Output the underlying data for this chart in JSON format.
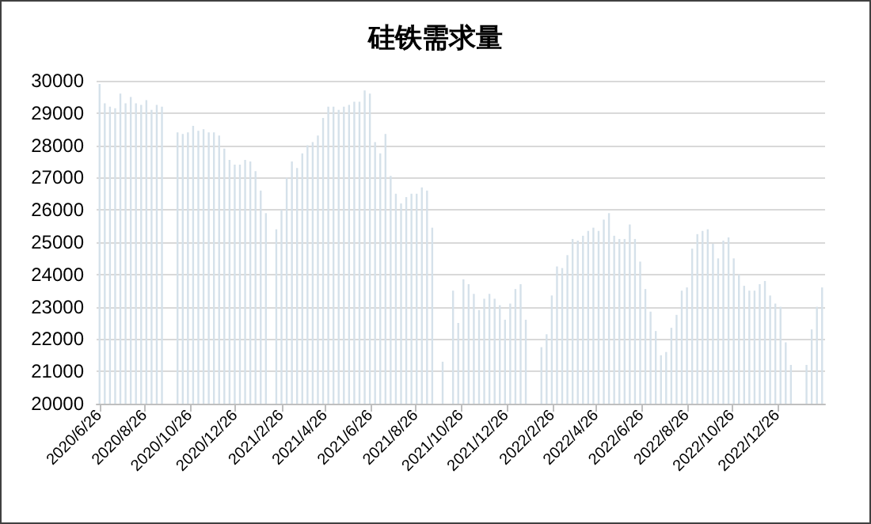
{
  "chart_data": {
    "type": "bar",
    "title": "硅铁需求量",
    "color": "#d5e1ea",
    "grid": "y",
    "xlim": [
      "2020-06-22",
      "2023-02-28"
    ],
    "ylim": [
      20000,
      30000
    ],
    "yticks": [
      20000,
      21000,
      22000,
      23000,
      24000,
      25000,
      26000,
      27000,
      28000,
      29000,
      30000
    ],
    "xticks": [
      {
        "value": "2020-06-26",
        "label": "2020/6/26"
      },
      {
        "value": "2020-08-26",
        "label": "2020/8/26"
      },
      {
        "value": "2020-10-26",
        "label": "2020/10/26"
      },
      {
        "value": "2020-12-26",
        "label": "2020/12/26"
      },
      {
        "value": "2021-02-26",
        "label": "2021/2/26"
      },
      {
        "value": "2021-04-26",
        "label": "2021/4/26"
      },
      {
        "value": "2021-06-26",
        "label": "2021/6/26"
      },
      {
        "value": "2021-08-26",
        "label": "2021/8/26"
      },
      {
        "value": "2021-10-26",
        "label": "2021/10/26"
      },
      {
        "value": "2021-12-26",
        "label": "2021/12/26"
      },
      {
        "value": "2022-02-26",
        "label": "2022/2/26"
      },
      {
        "value": "2022-04-26",
        "label": "2022/4/26"
      },
      {
        "value": "2022-06-26",
        "label": "2022/6/26"
      },
      {
        "value": "2022-08-26",
        "label": "2022/8/26"
      },
      {
        "value": "2022-10-26",
        "label": "2022/10/26"
      },
      {
        "value": "2022-12-26",
        "label": "2022/12/26"
      }
    ],
    "x": [
      "2020-06-26",
      "2020-07-03",
      "2020-07-10",
      "2020-07-17",
      "2020-07-24",
      "2020-07-31",
      "2020-08-07",
      "2020-08-14",
      "2020-08-21",
      "2020-08-28",
      "2020-09-04",
      "2020-09-11",
      "2020-09-18",
      "2020-09-25",
      "2020-10-02",
      "2020-10-09",
      "2020-10-16",
      "2020-10-23",
      "2020-10-30",
      "2020-11-06",
      "2020-11-13",
      "2020-11-20",
      "2020-11-27",
      "2020-12-04",
      "2020-12-11",
      "2020-12-18",
      "2020-12-25",
      "2021-01-01",
      "2021-01-08",
      "2021-01-15",
      "2021-01-22",
      "2021-01-29",
      "2021-02-05",
      "2021-02-12",
      "2021-02-19",
      "2021-02-26",
      "2021-03-05",
      "2021-03-12",
      "2021-03-19",
      "2021-03-26",
      "2021-04-02",
      "2021-04-09",
      "2021-04-16",
      "2021-04-23",
      "2021-04-30",
      "2021-05-07",
      "2021-05-14",
      "2021-05-21",
      "2021-05-28",
      "2021-06-04",
      "2021-06-11",
      "2021-06-18",
      "2021-06-25",
      "2021-07-02",
      "2021-07-09",
      "2021-07-16",
      "2021-07-23",
      "2021-07-30",
      "2021-08-06",
      "2021-08-13",
      "2021-08-20",
      "2021-08-27",
      "2021-09-03",
      "2021-09-10",
      "2021-09-17",
      "2021-09-24",
      "2021-10-01",
      "2021-10-08",
      "2021-10-15",
      "2021-10-22",
      "2021-10-29",
      "2021-11-05",
      "2021-11-12",
      "2021-11-19",
      "2021-11-26",
      "2021-12-03",
      "2021-12-10",
      "2021-12-17",
      "2021-12-24",
      "2021-12-31",
      "2022-01-07",
      "2022-01-14",
      "2022-01-21",
      "2022-01-28",
      "2022-02-04",
      "2022-02-11",
      "2022-02-18",
      "2022-02-25",
      "2022-03-04",
      "2022-03-11",
      "2022-03-18",
      "2022-03-25",
      "2022-04-01",
      "2022-04-08",
      "2022-04-15",
      "2022-04-22",
      "2022-04-29",
      "2022-05-06",
      "2022-05-13",
      "2022-05-20",
      "2022-05-27",
      "2022-06-03",
      "2022-06-10",
      "2022-06-17",
      "2022-06-24",
      "2022-07-01",
      "2022-07-08",
      "2022-07-15",
      "2022-07-22",
      "2022-07-29",
      "2022-08-05",
      "2022-08-12",
      "2022-08-19",
      "2022-08-26",
      "2022-09-02",
      "2022-09-09",
      "2022-09-16",
      "2022-09-23",
      "2022-09-30",
      "2022-10-07",
      "2022-10-14",
      "2022-10-21",
      "2022-10-28",
      "2022-11-04",
      "2022-11-11",
      "2022-11-18",
      "2022-11-25",
      "2022-12-02",
      "2022-12-09",
      "2022-12-16",
      "2022-12-23",
      "2022-12-30",
      "2023-01-06",
      "2023-01-13",
      "2023-01-20",
      "2023-01-27",
      "2023-02-03",
      "2023-02-10",
      "2023-02-17",
      "2023-02-24"
    ],
    "values": [
      29900,
      29300,
      29200,
      29150,
      29600,
      29300,
      29500,
      29300,
      29250,
      29400,
      29100,
      29250,
      29200,
      null,
      null,
      28400,
      28350,
      28400,
      28600,
      28450,
      28500,
      28400,
      28400,
      28300,
      27900,
      27550,
      27400,
      27400,
      27550,
      27500,
      27200,
      26600,
      25900,
      null,
      25400,
      26000,
      27000,
      27500,
      27300,
      27750,
      28000,
      28100,
      28300,
      28850,
      29200,
      29200,
      29100,
      29200,
      29250,
      29350,
      29350,
      29700,
      29600,
      28100,
      27750,
      28350,
      27050,
      26500,
      26200,
      26400,
      26500,
      26500,
      26700,
      26600,
      25450,
      null,
      21300,
      null,
      23500,
      22500,
      23850,
      23700,
      23400,
      22900,
      23250,
      23400,
      23250,
      23050,
      22600,
      23100,
      23550,
      23700,
      22600,
      null,
      null,
      21750,
      22150,
      23350,
      24250,
      24200,
      24600,
      25100,
      25050,
      25200,
      25350,
      25450,
      25350,
      25700,
      25900,
      25200,
      25100,
      25100,
      25550,
      25100,
      24400,
      23550,
      22850,
      22250,
      21500,
      21600,
      22350,
      22750,
      23500,
      23600,
      24800,
      25250,
      25350,
      25400,
      24950,
      24500,
      25050,
      25150,
      24500,
      24000,
      23650,
      23500,
      23500,
      23700,
      23800,
      23350,
      23100,
      23000,
      21900,
      21200,
      null,
      null,
      21200,
      22300,
      23000,
      23600
    ]
  }
}
